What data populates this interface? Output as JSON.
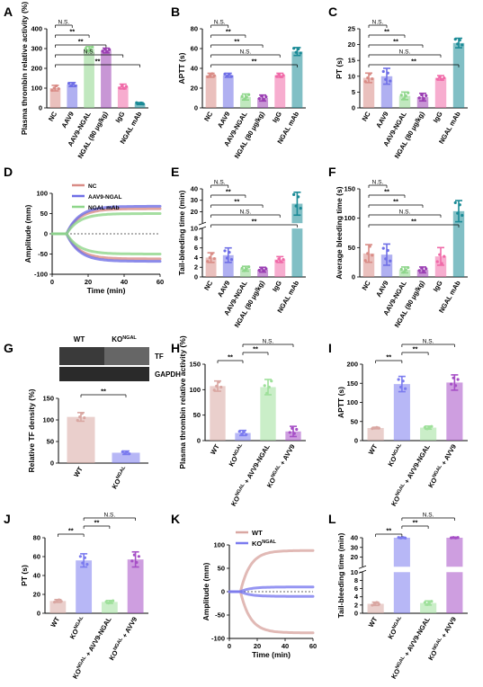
{
  "colors": {
    "NC": "#d98c86",
    "AAV9": "#6f6fe6",
    "AAV9-NGAL": "#8ed68a",
    "NGAL": "#9b3fb3",
    "IgG": "#f06aa8",
    "NGALmAb": "#1a8a96",
    "WT": "#d9a7a2",
    "KO": "#7b7bef",
    "KO_AAV9NGAL": "#9ee09a",
    "KO_AAV9": "#a64fc6"
  },
  "chart_data": [
    {
      "panel": "A",
      "type": "bar",
      "ylabel": "Plasma thrombin relative activity (%)",
      "categories": [
        "NC",
        "AAV9",
        "AAV9-NGAL",
        "NGAL (80 μg/kg)",
        "IgG",
        "NGAL mAb"
      ],
      "values": [
        100,
        118,
        298,
        290,
        108,
        22
      ],
      "errors": [
        14,
        10,
        12,
        12,
        12,
        5
      ],
      "ylim": [
        0,
        400
      ],
      "yticks": [
        "0",
        "100",
        "200",
        "300",
        "400"
      ],
      "significance": [
        "N.S.",
        "**",
        "**",
        "N.S.",
        "**"
      ]
    },
    {
      "panel": "B",
      "type": "bar",
      "ylabel": "APTT (s)",
      "categories": [
        "NC",
        "AAV9",
        "AAV9-NGAL",
        "NGAL (80 μg/kg)",
        "IgG",
        "NGAL mAb"
      ],
      "values": [
        33,
        33,
        11,
        10,
        33,
        57
      ],
      "errors": [
        2,
        2,
        3,
        3,
        2,
        4
      ],
      "ylim": [
        0,
        80
      ],
      "yticks": [
        "0",
        "20",
        "40",
        "60",
        "80"
      ],
      "significance": [
        "N.S.",
        "**",
        "**",
        "N.S.",
        "**"
      ]
    },
    {
      "panel": "C",
      "type": "bar",
      "ylabel": "PT (s)",
      "categories": [
        "NC",
        "AAV9",
        "AAV9-NGAL",
        "NGAL (80 μg/kg)",
        "IgG",
        "NGAL mAb"
      ],
      "values": [
        9.5,
        10,
        3.8,
        3.4,
        9.5,
        20.5
      ],
      "errors": [
        1.5,
        2.5,
        1.2,
        1.2,
        0.7,
        1.5
      ],
      "ylim": [
        0,
        25
      ],
      "yticks": [
        "0",
        "5",
        "10",
        "15",
        "20",
        "25"
      ],
      "significance": [
        "N.S.",
        "**",
        "**",
        "N.S.",
        "**"
      ]
    },
    {
      "panel": "D",
      "type": "line",
      "ylabel": "Amplitude (mm)",
      "xlabel": "Time (min)",
      "xlim": [
        0,
        60
      ],
      "ylim": [
        -100,
        100
      ],
      "xticks": [
        "0",
        "20",
        "40",
        "60"
      ],
      "yticks": [
        "-100",
        "-50",
        "0",
        "50",
        "100"
      ],
      "series": [
        {
          "name": "NC",
          "plateau": 62
        },
        {
          "name": "AAV9-NGAL",
          "plateau": 68
        },
        {
          "name": "NGAL mAb",
          "plateau": 50
        }
      ]
    },
    {
      "panel": "E",
      "type": "bar",
      "ylabel": "Tail-bleeding time (min)",
      "categories": [
        "NC",
        "AAV9",
        "AAV9-NGAL",
        "NGAL (80 μg/kg)",
        "IgG",
        "NGAL mAb"
      ],
      "values": [
        4,
        4.5,
        1.7,
        1.5,
        3.6,
        27
      ],
      "errors": [
        1,
        1.5,
        0.5,
        0.5,
        0.6,
        10
      ],
      "ylim_low": [
        0,
        10
      ],
      "ylim_high": [
        10,
        40
      ],
      "yticks": [
        "0",
        "2",
        "4",
        "6",
        "8",
        "10",
        "20",
        "30",
        "40"
      ],
      "significance": [
        "N.S.",
        "**",
        "**",
        "N.S.",
        "**"
      ]
    },
    {
      "panel": "F",
      "type": "bar",
      "ylabel": "Average bleeding time (s)",
      "categories": [
        "NC",
        "AAV9",
        "AAV9-NGAL",
        "NGAL (80 μg/kg)",
        "IgG",
        "NGAL mAb"
      ],
      "values": [
        40,
        38,
        12,
        12,
        35,
        112
      ],
      "errors": [
        15,
        18,
        5,
        5,
        15,
        18
      ],
      "ylim": [
        0,
        150
      ],
      "yticks": [
        "0",
        "50",
        "100",
        "150"
      ],
      "significance": [
        "N.S.",
        "**",
        "**",
        "N.S.",
        "**"
      ]
    },
    {
      "panel": "G",
      "type": "bar",
      "ylabel": "Relative TF density (%)",
      "blot_labels": [
        "WT",
        "KO",
        "TF",
        "GAPDH"
      ],
      "ko_sup": "NGAL",
      "categories": [
        "WT",
        "KO"
      ],
      "values": [
        107,
        24
      ],
      "errors": [
        10,
        4
      ],
      "ylim": [
        0,
        150
      ],
      "yticks": [
        "0",
        "50",
        "100",
        "150"
      ],
      "significance": [
        "**"
      ]
    },
    {
      "panel": "H",
      "type": "bar",
      "ylabel": "Plasma thrombin relative activity (%)",
      "categories": [
        "WT",
        "KO",
        "KO + AVV9-NGAL",
        "KO + AVV9"
      ],
      "values": [
        107,
        15,
        105,
        18
      ],
      "errors": [
        10,
        5,
        15,
        10
      ],
      "ylim": [
        0,
        150
      ],
      "yticks": [
        "0",
        "50",
        "100",
        "150"
      ],
      "significance": [
        "**",
        "**",
        "N.S."
      ]
    },
    {
      "panel": "I",
      "type": "bar",
      "ylabel": "APTT (s)",
      "categories": [
        "WT",
        "KO",
        "KO + AVV9-NGAL",
        "KO + AVV9"
      ],
      "values": [
        33,
        148,
        34,
        152
      ],
      "errors": [
        2,
        20,
        4,
        20
      ],
      "ylim": [
        0,
        200
      ],
      "yticks": [
        "0",
        "50",
        "100",
        "150",
        "200"
      ],
      "significance": [
        "**",
        "**",
        "N.S."
      ]
    },
    {
      "panel": "J",
      "type": "bar",
      "ylabel": "PT (s)",
      "categories": [
        "WT",
        "KO",
        "KO + AVV9-NGAL",
        "KO + AVV9"
      ],
      "values": [
        13,
        56,
        12,
        57
      ],
      "errors": [
        1.5,
        7,
        1.5,
        8
      ],
      "ylim": [
        0,
        80
      ],
      "yticks": [
        "0",
        "20",
        "40",
        "60",
        "80"
      ],
      "significance": [
        "**",
        "**",
        "N.S."
      ]
    },
    {
      "panel": "K",
      "type": "line",
      "ylabel": "Amplitude (mm)",
      "xlabel": "Time (min)",
      "xlim": [
        0,
        60
      ],
      "ylim": [
        -100,
        100
      ],
      "xticks": [
        "0",
        "20",
        "40",
        "60"
      ],
      "yticks": [
        "-100",
        "-50",
        "0",
        "50",
        "100"
      ],
      "series": [
        {
          "name": "WT",
          "plateau": 88
        },
        {
          "name": "KO",
          "plateau": 10
        }
      ]
    },
    {
      "panel": "L",
      "type": "bar",
      "ylabel": "Tail-bleeding time (min)",
      "categories": [
        "WT",
        "KO",
        "KO + AVV9-NGAL",
        "KO + AVV9"
      ],
      "values": [
        2.3,
        40,
        2.5,
        40
      ],
      "errors": [
        0.4,
        0.5,
        0.5,
        0.5
      ],
      "ylim_low": [
        0,
        10
      ],
      "ylim_high": [
        10,
        40
      ],
      "yticks": [
        "0",
        "2",
        "4",
        "6",
        "8",
        "10",
        "20",
        "30",
        "40"
      ],
      "significance": [
        "**",
        "**",
        "N.S."
      ]
    }
  ]
}
